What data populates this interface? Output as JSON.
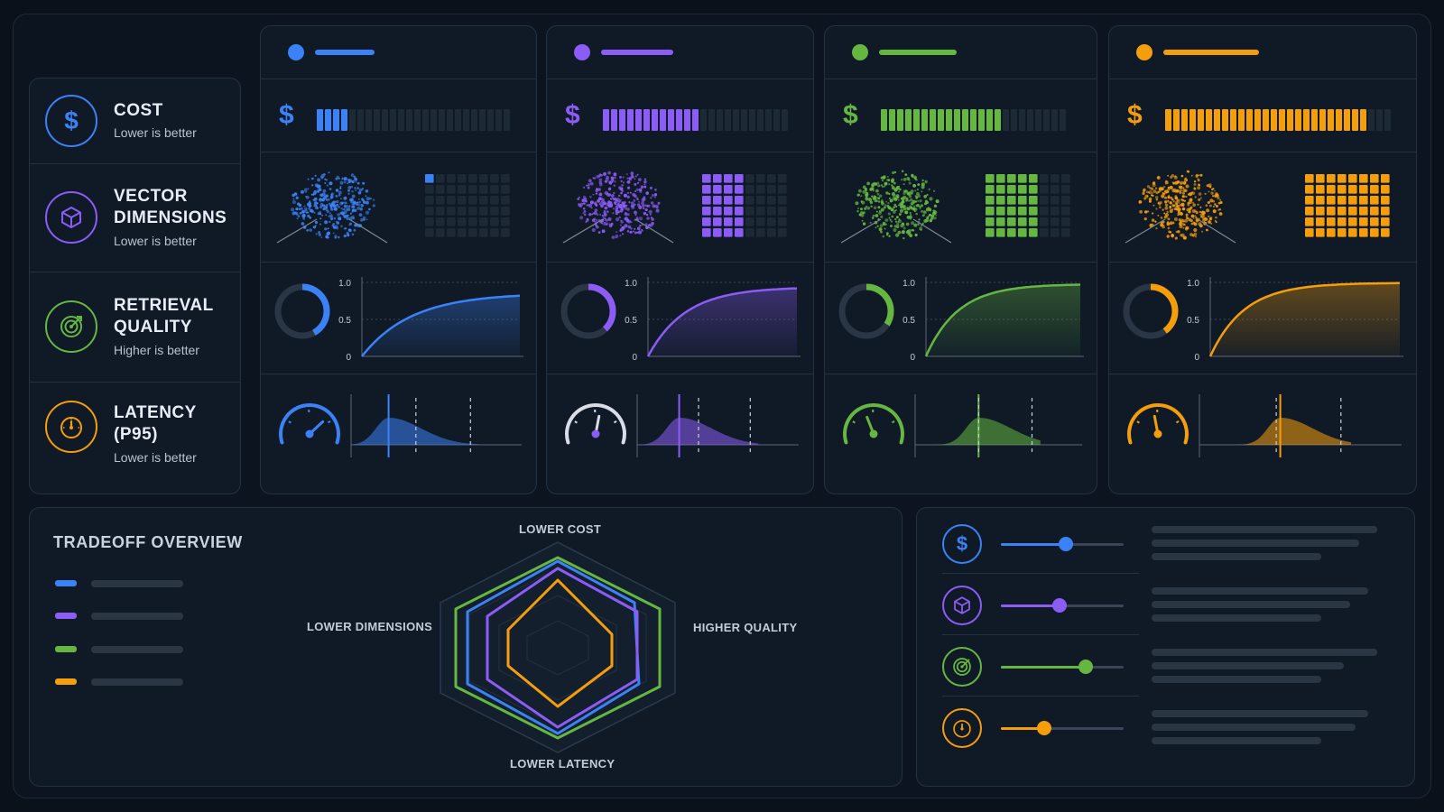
{
  "metrics": [
    {
      "title": "COST",
      "subtitle": "Lower is better",
      "icon": "dollar-icon",
      "color": "#3b82f6"
    },
    {
      "title": "VECTOR DIMENSIONS",
      "subtitle": "Lower is better",
      "icon": "cube-icon",
      "color": "#8b5cf6"
    },
    {
      "title": "RETRIEVAL QUALITY",
      "subtitle": "Higher is better",
      "icon": "target-icon",
      "color": "#65b741"
    },
    {
      "title": "LATENCY (P95)",
      "subtitle": "Lower is better",
      "icon": "stopwatch-icon",
      "color": "#f59e0b"
    }
  ],
  "columns": [
    {
      "color": "#3b82f6",
      "cost_level": 0.18,
      "dims_filled": 1,
      "quality_ring": 0.42,
      "curve_final": 0.82,
      "gauge_level": 0.72,
      "latency_peak": 0.22
    },
    {
      "color": "#8b5cf6",
      "cost_level": 0.52,
      "dims_filled": 20,
      "quality_ring": 0.38,
      "curve_final": 0.92,
      "gauge_level": 0.55,
      "latency_peak": 0.26
    },
    {
      "color": "#65b741",
      "cost_level": 0.66,
      "dims_filled": 30,
      "quality_ring": 0.34,
      "curve_final": 0.97,
      "gauge_level": 0.4,
      "latency_peak": 0.38
    },
    {
      "color": "#f59e0b",
      "cost_level": 0.88,
      "dims_filled": 45,
      "quality_ring": 0.4,
      "curve_final": 0.99,
      "gauge_level": 0.45,
      "latency_peak": 0.4
    }
  ],
  "curve_axis": {
    "ticks": [
      "1.0",
      "0.5",
      "0"
    ]
  },
  "overview": {
    "title": "TRADEOFF OVERVIEW",
    "axes": {
      "top": "LOWER COST",
      "left": "LOWER DIMENSIONS",
      "right": "HIGHER QUALITY",
      "bottom": "LOWER LATENCY"
    }
  },
  "controls": [
    {
      "icon": "dollar-icon",
      "color": "#3b82f6",
      "value": 0.53
    },
    {
      "icon": "cube-icon",
      "color": "#8b5cf6",
      "value": 0.48
    },
    {
      "icon": "target-icon",
      "color": "#65b741",
      "value": 0.69
    },
    {
      "icon": "stopwatch-icon",
      "color": "#f59e0b",
      "value": 0.35
    }
  ]
}
